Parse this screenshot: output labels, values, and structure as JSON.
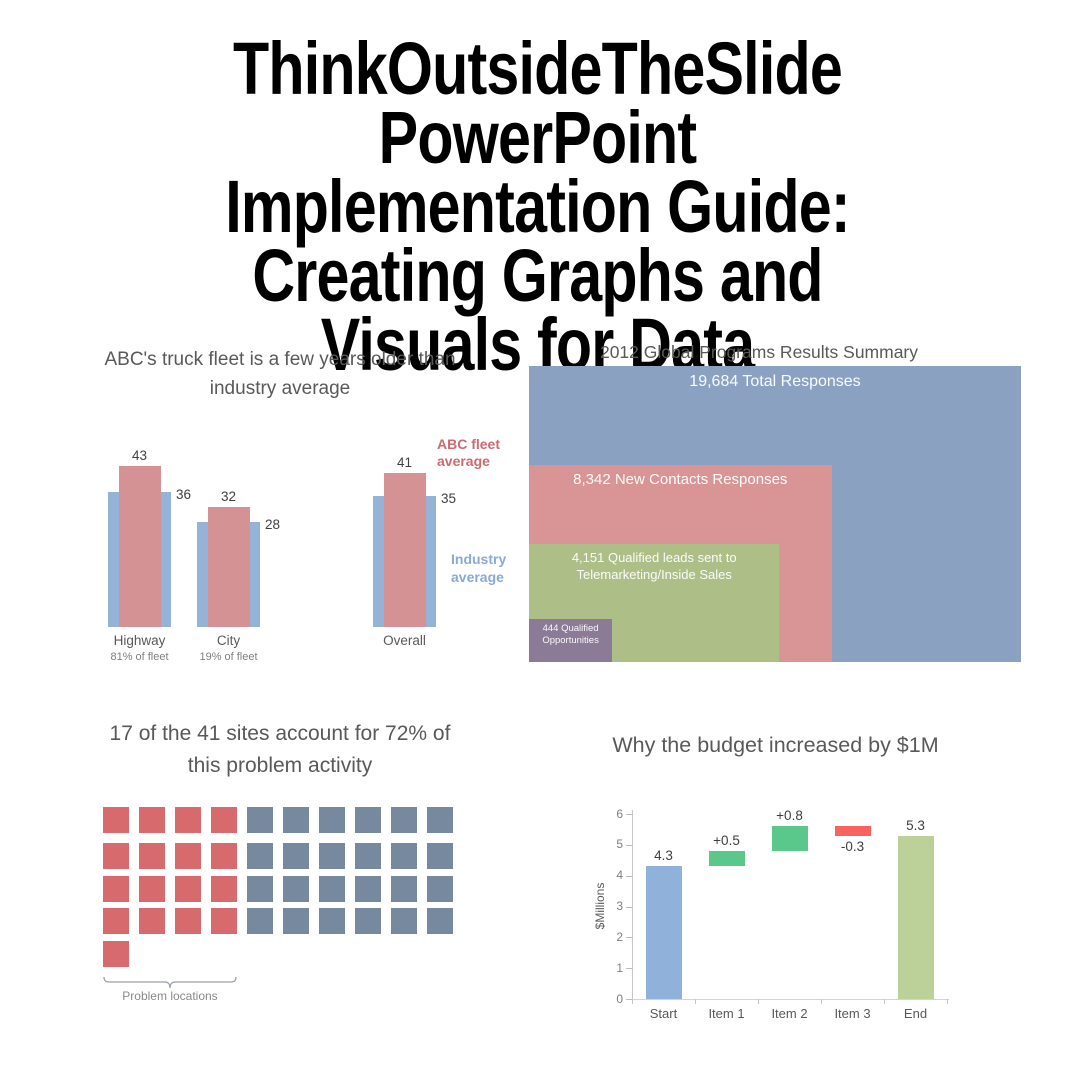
{
  "title": {
    "lines": [
      "ThinkOutsideTheSlide PowerPoint",
      "Implementation Guide:",
      "Creating Graphs and",
      "Visuals for Data"
    ]
  },
  "chart_data": [
    {
      "type": "bar",
      "subtype": "overlapping-grouped-bars",
      "title": "ABC's truck fleet is a few years older than industry average",
      "title_lines": [
        "ABC's truck fleet is a few years older than",
        "industry average"
      ],
      "categories": [
        "Highway",
        "City",
        "Overall"
      ],
      "category_sublabels": [
        "81% of fleet",
        "19% of fleet",
        ""
      ],
      "series": [
        {
          "name": "ABC fleet average",
          "values": [
            43,
            32,
            41
          ],
          "color": "#d49294",
          "legend_lines": [
            "ABC fleet",
            "average"
          ],
          "legend_color": "#c96b6f"
        },
        {
          "name": "Industry average",
          "values": [
            36,
            28,
            35
          ],
          "color": "#95b3d7",
          "legend_lines": [
            "Industry",
            "average"
          ],
          "legend_color": "#88aad6"
        }
      ],
      "ylim": [
        0,
        45
      ],
      "grid": false,
      "legend_position": "right",
      "value_labels": true
    },
    {
      "type": "area",
      "subtype": "nested-rectangles",
      "title": "2012 Global Programs Results Summary",
      "categories": [
        "Total Responses",
        "New Contacts Responses",
        "Qualified leads sent to Telemarketing/Inside Sales",
        "Qualified Opportunities"
      ],
      "values": [
        19684,
        8342,
        4151,
        444
      ],
      "labels": [
        [
          "19,684 Total Responses"
        ],
        [
          "8,342 New Contacts Responses"
        ],
        [
          "4,151 Qualified leads sent to",
          "Telemarketing/Inside Sales"
        ],
        [
          "444 Qualified",
          "Opportunities"
        ]
      ],
      "colors": [
        "#8aa1c1",
        "#d99596",
        "#adbe87",
        "#8b7b96"
      ],
      "rel_width": [
        1,
        0.615,
        0.509,
        0.169
      ],
      "rel_height": [
        1,
        0.666,
        0.399,
        0.145
      ],
      "text_color": "#ffffff"
    },
    {
      "type": "heatmap",
      "subtype": "waffle-unit-chart",
      "title": "17 of the 41 sites account for 72% of this problem activity",
      "title_lines": [
        "17 of the 41 sites account for 72% of",
        "this problem activity"
      ],
      "total_units": 41,
      "highlighted_units": 17,
      "columns": 10,
      "full_rows": 4,
      "highlighted_columns": 4,
      "extra_highlighted_last_row": 1,
      "colors": {
        "highlighted": "#d66a6d",
        "other": "#77899e"
      },
      "annotation": "Problem locations"
    },
    {
      "type": "bar",
      "subtype": "waterfall",
      "title": "Why the budget increased by $1M",
      "ylabel": "$Millions",
      "ylim": [
        0,
        6
      ],
      "yticks": [
        0,
        1,
        2,
        3,
        4,
        5,
        6
      ],
      "categories": [
        "Start",
        "Item 1",
        "Item 2",
        "Item 3",
        "End"
      ],
      "bars": [
        {
          "category": "Start",
          "from": 0,
          "to": 4.3,
          "label": "4.3",
          "label_position": "above",
          "color": "#90b1d9"
        },
        {
          "category": "Item 1",
          "from": 4.3,
          "to": 4.8,
          "label": "+0.5",
          "label_position": "above",
          "color": "#5ac88a"
        },
        {
          "category": "Item 2",
          "from": 4.8,
          "to": 5.6,
          "label": "+0.8",
          "label_position": "above",
          "color": "#5ac88a"
        },
        {
          "category": "Item 3",
          "from": 5.6,
          "to": 5.3,
          "label": "-0.3",
          "label_position": "below",
          "color": "#f8625f"
        },
        {
          "category": "End",
          "from": 0,
          "to": 5.3,
          "label": "5.3",
          "label_position": "above",
          "color": "#bcd199"
        }
      ],
      "grid": false
    }
  ]
}
